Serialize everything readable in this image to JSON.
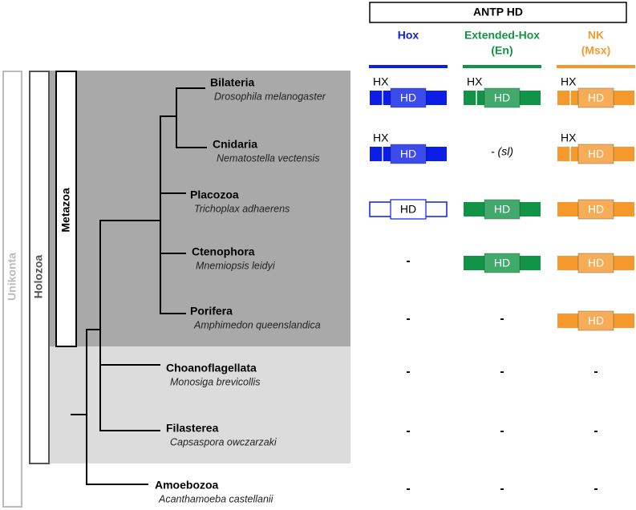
{
  "header": {
    "title": "ANTP HD",
    "columns": [
      {
        "name": "Hox",
        "color": "#0b1ee8"
      },
      {
        "name": "Extended-Hox",
        "sub": "(En)",
        "color": "#129447"
      },
      {
        "name": "NK",
        "sub": "(Msx)",
        "color": "#f5992d"
      }
    ]
  },
  "clades": [
    {
      "name": "Unikonta"
    },
    {
      "name": "Holozoa"
    },
    {
      "name": "Metazoa"
    }
  ],
  "taxa": [
    {
      "name": "Bilateria",
      "species": "Drosophila melanogaster",
      "cells": [
        {
          "hx": "HX",
          "hd": "HD"
        },
        {
          "hx": "HX",
          "hd": "HD"
        },
        {
          "hx": "HX",
          "hd": "HD"
        }
      ]
    },
    {
      "name": "Cnidaria",
      "species": "Nematostella vectensis",
      "cells": [
        {
          "hx": "HX",
          "hd": "HD"
        },
        {
          "text": "- (sl)"
        },
        {
          "hx": "HX",
          "hd": "HD"
        }
      ]
    },
    {
      "name": "Placozoa",
      "species": "Trichoplax adhaerens",
      "cells": [
        {
          "hd": "HD",
          "style": "outline"
        },
        {
          "hd": "HD"
        },
        {
          "hd": "HD"
        }
      ]
    },
    {
      "name": "Ctenophora",
      "species": "Mnemiopsis leidyi",
      "cells": [
        {
          "text": "-"
        },
        {
          "hd": "HD"
        },
        {
          "hd": "HD"
        }
      ]
    },
    {
      "name": "Porifera",
      "species": "Amphimedon queenslandica",
      "cells": [
        {
          "text": "-"
        },
        {
          "text": "-"
        },
        {
          "hd": "HD"
        }
      ]
    },
    {
      "name": "Choanoflagellata",
      "species": "Monosiga brevicollis",
      "cells": [
        {
          "text": "-"
        },
        {
          "text": "-"
        },
        {
          "text": "-"
        }
      ]
    },
    {
      "name": "Filasterea",
      "species": "Capsaspora owczarzaki",
      "cells": [
        {
          "text": "-"
        },
        {
          "text": "-"
        },
        {
          "text": "-"
        }
      ]
    },
    {
      "name": "Amoebozoa",
      "species": "Acanthamoeba castellanii",
      "cells": [
        {
          "text": "-"
        },
        {
          "text": "-"
        },
        {
          "text": "-"
        }
      ]
    }
  ]
}
